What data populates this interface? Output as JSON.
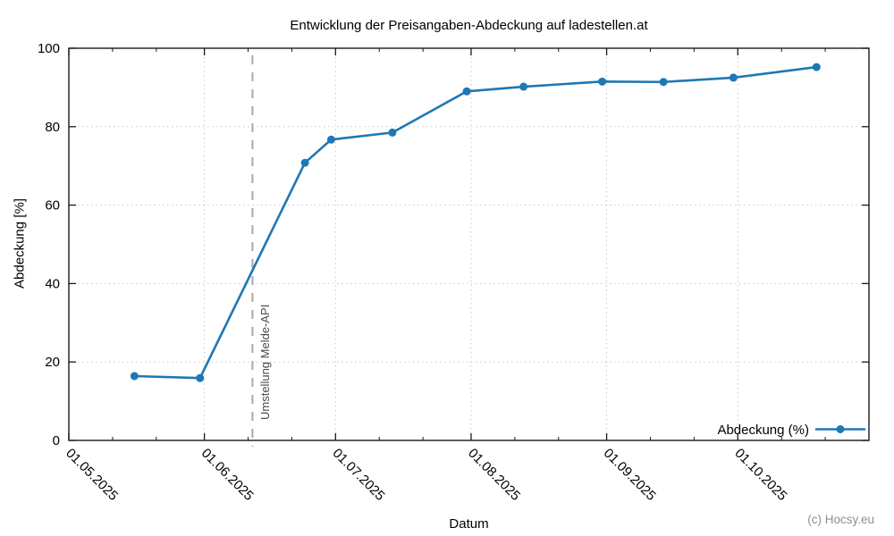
{
  "watermark": "(c) Hocsy.eu",
  "chart_data": {
    "type": "line",
    "title": "Entwicklung der Preisangaben-Abdeckung auf ladestellen.at",
    "xlabel": "Datum",
    "ylabel": "Abdeckung [%]",
    "x_range": [
      "2025-05-01",
      "2025-10-31"
    ],
    "y_range": [
      0,
      100
    ],
    "y_ticks": [
      0,
      20,
      40,
      60,
      80,
      100
    ],
    "x_ticks": [
      {
        "date": "2025-05-01",
        "label": "01.05.2025"
      },
      {
        "date": "2025-06-01",
        "label": "01.06.2025"
      },
      {
        "date": "2025-07-01",
        "label": "01.07.2025"
      },
      {
        "date": "2025-08-01",
        "label": "01.08.2025"
      },
      {
        "date": "2025-09-01",
        "label": "01.09.2025"
      },
      {
        "date": "2025-10-01",
        "label": "01.10.2025"
      }
    ],
    "x_minor_ticks": [
      "2025-05-11",
      "2025-05-21",
      "2025-06-11",
      "2025-06-21",
      "2025-07-11",
      "2025-07-21",
      "2025-08-11",
      "2025-08-21",
      "2025-09-11",
      "2025-09-21",
      "2025-10-11",
      "2025-10-21"
    ],
    "grid": true,
    "legend_position": "bottom-right",
    "series": [
      {
        "name": "Abdeckung (%)",
        "color": "#1f77b4",
        "points": [
          {
            "date": "2025-05-16",
            "value": 16.4
          },
          {
            "date": "2025-05-31",
            "value": 15.9
          },
          {
            "date": "2025-06-24",
            "value": 70.8
          },
          {
            "date": "2025-06-30",
            "value": 76.7
          },
          {
            "date": "2025-07-14",
            "value": 78.5
          },
          {
            "date": "2025-07-31",
            "value": 89.0
          },
          {
            "date": "2025-08-13",
            "value": 90.2
          },
          {
            "date": "2025-08-31",
            "value": 91.5
          },
          {
            "date": "2025-09-14",
            "value": 91.4
          },
          {
            "date": "2025-09-30",
            "value": 92.5
          },
          {
            "date": "2025-10-19",
            "value": 95.2
          }
        ]
      }
    ],
    "annotation_line": {
      "date": "2025-06-12",
      "label": "Umstellung Melde-API",
      "line_color": "#a8a8a8",
      "text_color": "#4a4a4a"
    },
    "colors": {
      "axis": "#1a1a1a",
      "grid": "#c8c8c8",
      "series": "#1f77b4"
    }
  }
}
